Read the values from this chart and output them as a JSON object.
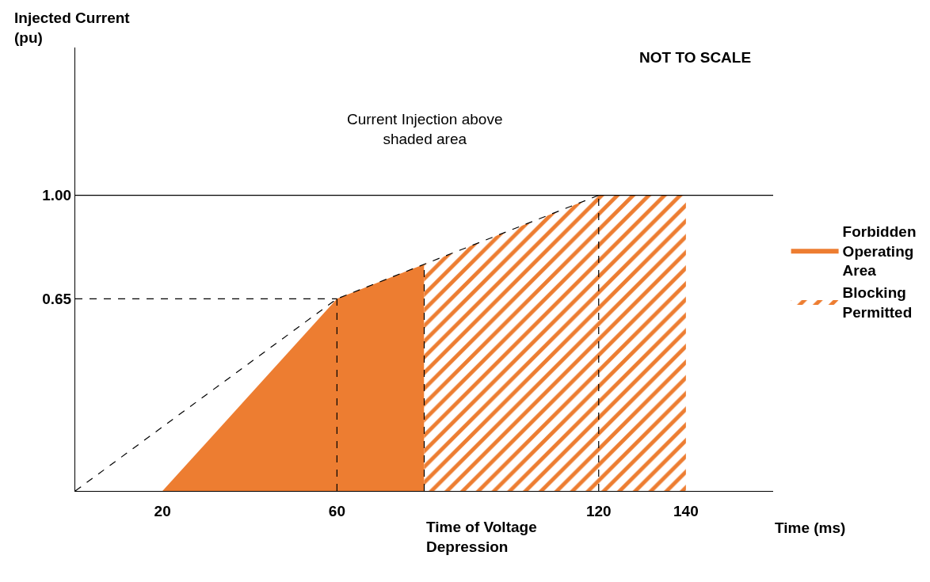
{
  "chart_data": {
    "type": "area",
    "title": "NOT TO SCALE",
    "xlabel": "Time (ms)",
    "ylabel": "Injected Current (pu)",
    "xlim": [
      0,
      160
    ],
    "ylim": [
      0,
      1.5
    ],
    "xticks": [
      20,
      60,
      120,
      140
    ],
    "yticks": [
      0.65,
      {
        "value": 1,
        "label": "1.00"
      }
    ],
    "series": [
      {
        "name": "Forbidden Operating Area",
        "color": "#ed7d31",
        "x": [
          20,
          60,
          80
        ],
        "values": [
          0,
          0.65,
          0.767
        ]
      },
      {
        "name": "Blocking Permitted",
        "color": "#ed7d31",
        "x": [
          80,
          120,
          140
        ],
        "values": [
          0.767,
          1,
          1
        ]
      },
      {
        "type": "line",
        "color": "#000000",
        "line_style": "dashed",
        "x": [
          0,
          60,
          120
        ],
        "values": [
          0,
          0.65,
          1
        ]
      },
      {
        "type": "line",
        "color": "#000000",
        "line_style": "dashed",
        "x": [
          0,
          60
        ],
        "values": [
          0.65,
          0.65
        ]
      },
      {
        "type": "line",
        "color": "#000000",
        "line_style": "dashed",
        "x": [
          60,
          60
        ],
        "values": [
          0,
          0.65
        ]
      },
      {
        "type": "line",
        "color": "#000000",
        "line_style": "dashed",
        "x": [
          80,
          80
        ],
        "values": [
          0,
          0.767
        ]
      },
      {
        "type": "line",
        "color": "#000000",
        "line_style": "dashed",
        "x": [
          120,
          120
        ],
        "values": [
          0,
          1
        ]
      }
    ],
    "ref_lines": [
      {
        "axis": "y",
        "value": 1,
        "color": "#000000",
        "line_style": "solid"
      }
    ],
    "annotations": [
      "Current Injection above shaded area",
      {
        "text": "Time of Voltage Depression",
        "x": 80,
        "y": 0
      }
    ],
    "grid": false,
    "legend": "right",
    "marker": "none"
  }
}
